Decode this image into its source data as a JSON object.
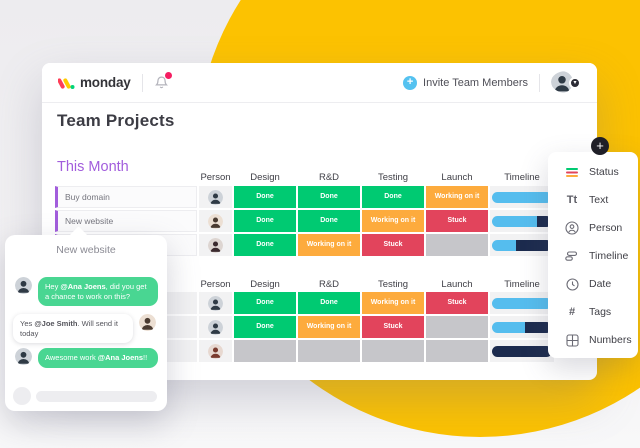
{
  "colors": {
    "yellow": "#fcc201",
    "group_purple": "#a25ddc",
    "done": "#00ca72",
    "working": "#fdab3d",
    "stuck": "#e2445c",
    "empty": "#c6c6ca",
    "timeline_blue": "#55bdee",
    "timeline_navy": "#1c2b4e",
    "bubble_green": "#49d692"
  },
  "topbar": {
    "logo": "monday",
    "invite": "Invite Team Members",
    "invite_plus": "+",
    "avatar_badge": "▾"
  },
  "page_title": "Team Projects",
  "columns": [
    "Person",
    "Design",
    "R&D",
    "Testing",
    "Launch",
    "Timeline"
  ],
  "status_labels": {
    "done": "Done",
    "working": "Working on it",
    "stuck": "Stuck",
    "empty": ""
  },
  "groups": [
    {
      "title": "This Month",
      "label_style": "bordered",
      "rows": [
        {
          "label": "Buy domain",
          "avatar": "man-dark",
          "statuses": [
            "done",
            "done",
            "done",
            "working"
          ],
          "timeline": [
            {
              "color": "blue",
              "pct": 100
            }
          ]
        },
        {
          "label": "New website",
          "avatar": "man-light",
          "statuses": [
            "done",
            "done",
            "working",
            "stuck"
          ],
          "timeline": [
            {
              "color": "blue",
              "pct": 75
            },
            {
              "color": "navy",
              "pct": 25
            }
          ]
        },
        {
          "label": "",
          "avatar": "woman-dark",
          "statuses": [
            "done",
            "working",
            "stuck",
            "empty"
          ],
          "timeline": [
            {
              "color": "blue",
              "pct": 40
            },
            {
              "color": "navy",
              "pct": 60
            }
          ]
        }
      ]
    },
    {
      "title": "",
      "label_style": "plain",
      "rows": [
        {
          "label": "",
          "avatar": "man-dark",
          "statuses": [
            "done",
            "done",
            "working",
            "stuck"
          ],
          "timeline": [
            {
              "color": "blue",
              "pct": 100
            }
          ]
        },
        {
          "label": "",
          "avatar": "man-dark",
          "statuses": [
            "done",
            "working",
            "stuck",
            "empty"
          ],
          "timeline": [
            {
              "color": "blue",
              "pct": 55
            },
            {
              "color": "navy",
              "pct": 45
            }
          ]
        },
        {
          "label": "",
          "avatar": "woman-red",
          "statuses": [
            "empty",
            "empty",
            "empty",
            "empty"
          ],
          "timeline": [
            {
              "color": "navy",
              "pct": 100
            }
          ]
        }
      ]
    }
  ],
  "chat": {
    "title": "New website",
    "messages": [
      {
        "side": "left",
        "style": "green",
        "prefix": "Hey ",
        "bold": "@Ana Joens",
        "suffix": ", did you get a chance to work on this?",
        "avatar": "man-dark"
      },
      {
        "side": "right",
        "style": "white",
        "prefix": "Yes ",
        "bold": "@Joe Smith",
        "suffix": ". Will send it today",
        "avatar": "man-light"
      },
      {
        "side": "left",
        "style": "green",
        "prefix": "Awesome work ",
        "bold": "@Ana Joens",
        "suffix": "!!",
        "avatar": "man-dark"
      }
    ]
  },
  "column_menu": {
    "add_button": "+",
    "items": [
      {
        "icon": "status-icon",
        "label": "Status"
      },
      {
        "icon": "text-icon",
        "label": "Text",
        "glyph": "Tt"
      },
      {
        "icon": "person-icon",
        "label": "Person"
      },
      {
        "icon": "timeline-icon",
        "label": "Timeline"
      },
      {
        "icon": "date-icon",
        "label": "Date"
      },
      {
        "icon": "tags-icon",
        "label": "Tags",
        "glyph": "#"
      },
      {
        "icon": "numbers-icon",
        "label": "Numbers"
      }
    ]
  }
}
